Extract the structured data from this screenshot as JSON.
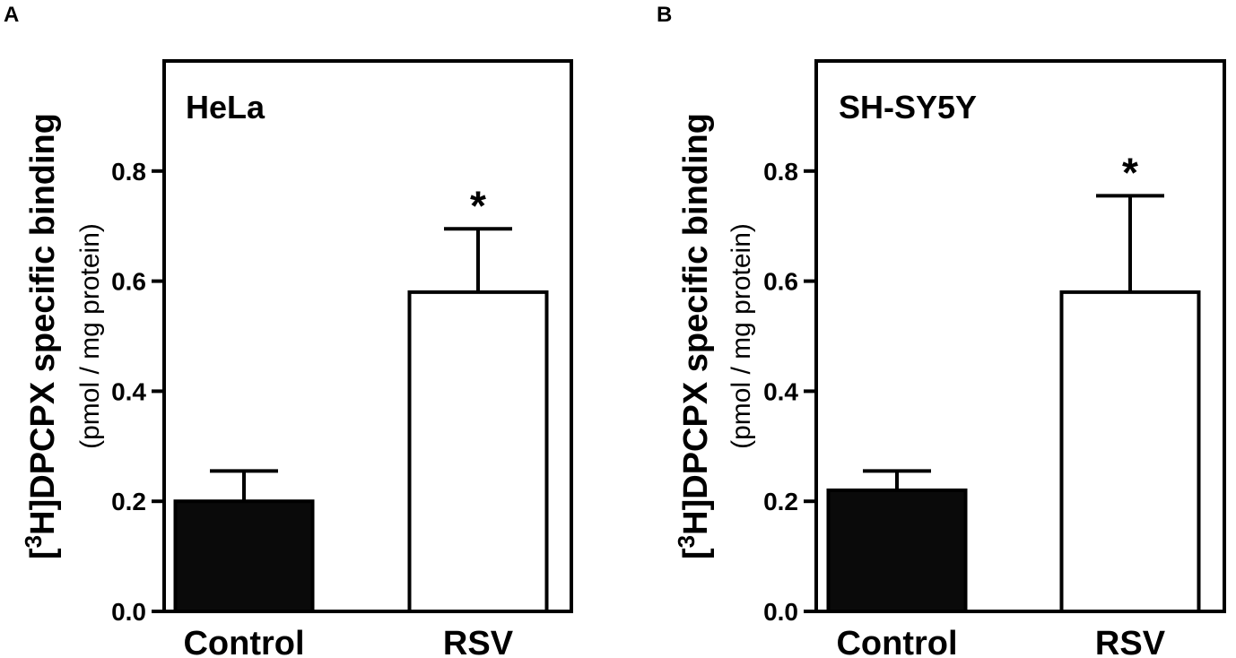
{
  "chart_data": [
    {
      "type": "bar",
      "panel_label": "A",
      "annotation": "HeLa",
      "categories": [
        "Control",
        "RSV"
      ],
      "values": [
        0.2,
        0.58
      ],
      "errors": [
        0.055,
        0.115
      ],
      "significance": [
        "",
        "*"
      ],
      "bar_colors": [
        "#0a0a0a",
        "#ffffff"
      ],
      "ylabel_main": "DPCPX specific binding",
      "ylabel_sup": "3",
      "ylabel_sub": "(pmol / mg protein)",
      "yticks": [
        "0.0",
        "0.2",
        "0.4",
        "0.6",
        "0.8"
      ],
      "ylim": [
        0,
        1.0
      ],
      "grid": false,
      "legend": false
    },
    {
      "type": "bar",
      "panel_label": "B",
      "annotation": "SH-SY5Y",
      "categories": [
        "Control",
        "RSV"
      ],
      "values": [
        0.22,
        0.58
      ],
      "errors": [
        0.035,
        0.175
      ],
      "significance": [
        "",
        "*"
      ],
      "bar_colors": [
        "#0a0a0a",
        "#ffffff"
      ],
      "ylabel_main": "DPCPX specific binding",
      "ylabel_sup": "3",
      "ylabel_sub": "(pmol / mg protein)",
      "yticks": [
        "0.0",
        "0.2",
        "0.4",
        "0.6",
        "0.8"
      ],
      "ylim": [
        0,
        1.0
      ],
      "grid": false,
      "legend": false
    }
  ]
}
